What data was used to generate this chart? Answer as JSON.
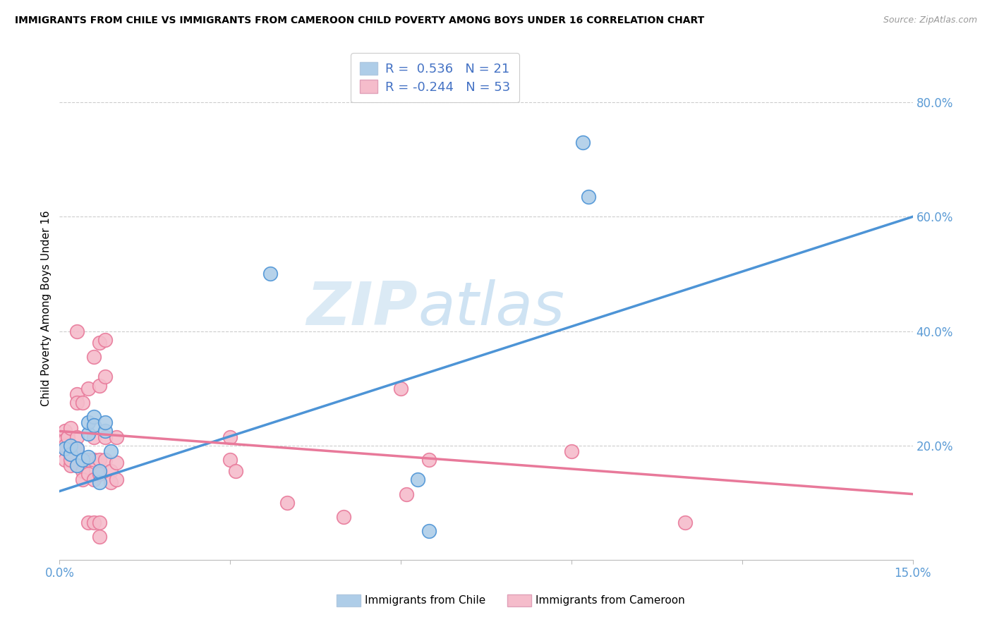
{
  "title": "IMMIGRANTS FROM CHILE VS IMMIGRANTS FROM CAMEROON CHILD POVERTY AMONG BOYS UNDER 16 CORRELATION CHART",
  "source": "Source: ZipAtlas.com",
  "ylabel": "Child Poverty Among Boys Under 16",
  "xlim": [
    0.0,
    0.15
  ],
  "ylim": [
    0.0,
    0.88
  ],
  "xtick_positions": [
    0.0,
    0.03,
    0.06,
    0.09,
    0.12,
    0.15
  ],
  "xtick_labels": [
    "0.0%",
    "",
    "",
    "",
    "",
    "15.0%"
  ],
  "ytick_labels_right": [
    "80.0%",
    "60.0%",
    "40.0%",
    "20.0%"
  ],
  "ytick_vals_right": [
    0.8,
    0.6,
    0.4,
    0.2
  ],
  "watermark_zip": "ZIP",
  "watermark_atlas": "atlas",
  "chile_color": "#aecde8",
  "cameroon_color": "#f5bccb",
  "chile_line_color": "#4d94d6",
  "cameroon_line_color": "#e8799a",
  "R_chile": 0.536,
  "N_chile": 21,
  "R_cameroon": -0.244,
  "N_cameroon": 53,
  "chile_line_x0": 0.0,
  "chile_line_y0": 0.12,
  "chile_line_x1": 0.15,
  "chile_line_y1": 0.6,
  "cam_line_x0": 0.0,
  "cam_line_y0": 0.225,
  "cam_line_x1": 0.15,
  "cam_line_y1": 0.115,
  "chile_points": [
    [
      0.001,
      0.195
    ],
    [
      0.002,
      0.185
    ],
    [
      0.002,
      0.2
    ],
    [
      0.003,
      0.195
    ],
    [
      0.003,
      0.165
    ],
    [
      0.004,
      0.175
    ],
    [
      0.005,
      0.22
    ],
    [
      0.005,
      0.24
    ],
    [
      0.005,
      0.18
    ],
    [
      0.006,
      0.25
    ],
    [
      0.006,
      0.235
    ],
    [
      0.007,
      0.135
    ],
    [
      0.007,
      0.155
    ],
    [
      0.008,
      0.225
    ],
    [
      0.008,
      0.24
    ],
    [
      0.009,
      0.19
    ],
    [
      0.037,
      0.5
    ],
    [
      0.063,
      0.14
    ],
    [
      0.065,
      0.05
    ],
    [
      0.092,
      0.73
    ],
    [
      0.093,
      0.635
    ]
  ],
  "cameroon_points": [
    [
      0.001,
      0.225
    ],
    [
      0.001,
      0.21
    ],
    [
      0.001,
      0.195
    ],
    [
      0.001,
      0.175
    ],
    [
      0.001,
      0.2
    ],
    [
      0.0015,
      0.215
    ],
    [
      0.002,
      0.23
    ],
    [
      0.002,
      0.185
    ],
    [
      0.002,
      0.165
    ],
    [
      0.002,
      0.175
    ],
    [
      0.003,
      0.4
    ],
    [
      0.003,
      0.29
    ],
    [
      0.003,
      0.275
    ],
    [
      0.003,
      0.215
    ],
    [
      0.003,
      0.195
    ],
    [
      0.003,
      0.165
    ],
    [
      0.004,
      0.275
    ],
    [
      0.004,
      0.155
    ],
    [
      0.004,
      0.14
    ],
    [
      0.005,
      0.3
    ],
    [
      0.005,
      0.175
    ],
    [
      0.005,
      0.15
    ],
    [
      0.005,
      0.065
    ],
    [
      0.006,
      0.355
    ],
    [
      0.006,
      0.215
    ],
    [
      0.006,
      0.175
    ],
    [
      0.006,
      0.14
    ],
    [
      0.006,
      0.065
    ],
    [
      0.007,
      0.38
    ],
    [
      0.007,
      0.305
    ],
    [
      0.007,
      0.175
    ],
    [
      0.007,
      0.15
    ],
    [
      0.007,
      0.065
    ],
    [
      0.007,
      0.04
    ],
    [
      0.008,
      0.385
    ],
    [
      0.008,
      0.32
    ],
    [
      0.008,
      0.215
    ],
    [
      0.008,
      0.175
    ],
    [
      0.009,
      0.155
    ],
    [
      0.009,
      0.135
    ],
    [
      0.01,
      0.215
    ],
    [
      0.01,
      0.17
    ],
    [
      0.01,
      0.14
    ],
    [
      0.03,
      0.215
    ],
    [
      0.03,
      0.175
    ],
    [
      0.031,
      0.155
    ],
    [
      0.04,
      0.1
    ],
    [
      0.05,
      0.075
    ],
    [
      0.06,
      0.3
    ],
    [
      0.061,
      0.115
    ],
    [
      0.065,
      0.175
    ],
    [
      0.09,
      0.19
    ],
    [
      0.11,
      0.065
    ]
  ]
}
